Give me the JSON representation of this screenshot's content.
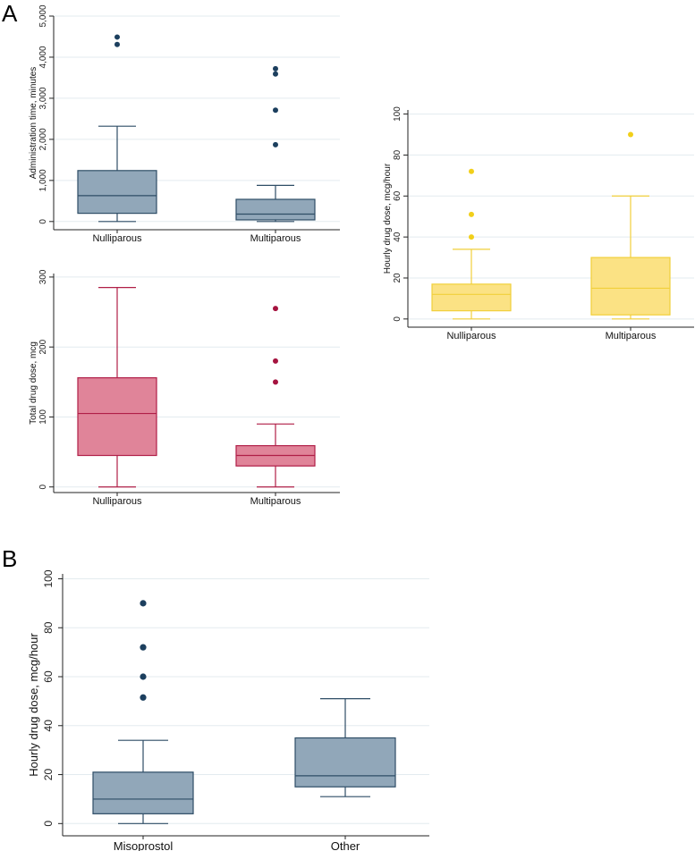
{
  "panels": [
    "A",
    "B"
  ],
  "chart_data": [
    {
      "id": "admin_time",
      "type": "box",
      "ylabel": "Administration time, minutes",
      "categories": [
        "Nulliparous",
        "Multiparous"
      ],
      "ylim": [
        -200,
        5000
      ],
      "yticks": [
        0,
        1000,
        2000,
        3000,
        4000,
        5000
      ],
      "ytick_labels": [
        "0",
        "1,000",
        "2,000",
        "3,000",
        "4,000",
        "5,000"
      ],
      "color": {
        "fill": "#91a7b9",
        "stroke": "#2e4d66",
        "outlier": "#1c3f5e"
      },
      "boxes": [
        {
          "category": "Nulliparous",
          "whisker_low": 0,
          "q1": 200,
          "median": 630,
          "q3": 1240,
          "whisker_high": 2320,
          "outliers": [
            4310,
            4490
          ]
        },
        {
          "category": "Multiparous",
          "whisker_low": 0,
          "q1": 40,
          "median": 180,
          "q3": 540,
          "whisker_high": 880,
          "outliers": [
            1870,
            2710,
            3590,
            3720
          ]
        }
      ]
    },
    {
      "id": "total_dose",
      "type": "box",
      "ylabel": "Total drug dose, mcg",
      "categories": [
        "Nulliparous",
        "Multiparous"
      ],
      "ylim": [
        -8,
        305
      ],
      "yticks": [
        0,
        100,
        200,
        300
      ],
      "ytick_labels": [
        "0",
        "100",
        "200",
        "300"
      ],
      "color": {
        "fill": "#e08499",
        "stroke": "#b01e47",
        "outlier": "#a5133f"
      },
      "boxes": [
        {
          "category": "Nulliparous",
          "whisker_low": 0,
          "q1": 45,
          "median": 105,
          "q3": 156,
          "whisker_high": 285,
          "outliers": []
        },
        {
          "category": "Multiparous",
          "whisker_low": 0,
          "q1": 30,
          "median": 45,
          "q3": 59,
          "whisker_high": 90,
          "outliers": [
            150,
            180,
            255
          ]
        }
      ]
    },
    {
      "id": "hourly_dose_parity",
      "type": "box",
      "ylabel": "Hourly drug dose, mcg/hour",
      "categories": [
        "Nulliparous",
        "Multiparous"
      ],
      "ylim": [
        -4,
        102
      ],
      "yticks": [
        0,
        20,
        40,
        60,
        80,
        100
      ],
      "ytick_labels": [
        "0",
        "20",
        "40",
        "60",
        "80",
        "100"
      ],
      "color": {
        "fill": "#fbe284",
        "stroke": "#f1cf3a",
        "outlier": "#f1cf1a"
      },
      "boxes": [
        {
          "category": "Nulliparous",
          "whisker_low": 0,
          "q1": 4,
          "median": 12,
          "q3": 17,
          "whisker_high": 34,
          "outliers": [
            40,
            51,
            72
          ]
        },
        {
          "category": "Multiparous",
          "whisker_low": 0,
          "q1": 2,
          "median": 15,
          "q3": 30,
          "whisker_high": 60,
          "outliers": [
            90
          ]
        }
      ]
    },
    {
      "id": "hourly_dose_drug",
      "type": "box",
      "ylabel": "Hourly drug dose, mcg/hour",
      "categories": [
        "Misoprostol",
        "Other"
      ],
      "ylim": [
        -5,
        102
      ],
      "yticks": [
        0,
        20,
        40,
        60,
        80,
        100
      ],
      "ytick_labels": [
        "0",
        "20",
        "40",
        "60",
        "80",
        "100"
      ],
      "color": {
        "fill": "#91a7b9",
        "stroke": "#2e4d66",
        "outlier": "#1c3f5e"
      },
      "boxes": [
        {
          "category": "Misoprostol",
          "whisker_low": 0,
          "q1": 4,
          "median": 10,
          "q3": 21,
          "whisker_high": 34,
          "outliers": [
            51.5,
            60,
            72,
            90
          ]
        },
        {
          "category": "Other",
          "whisker_low": 11,
          "q1": 15,
          "median": 19.5,
          "q3": 35,
          "whisker_high": 51,
          "outliers": []
        }
      ]
    }
  ]
}
